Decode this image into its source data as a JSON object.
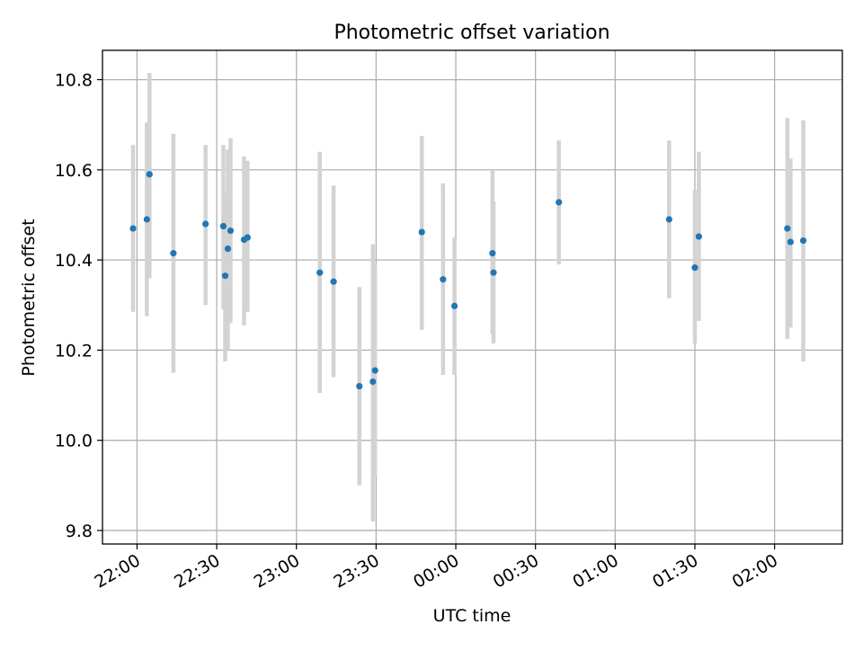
{
  "chart_data": {
    "type": "scatter",
    "title": "Photometric offset variation",
    "xlabel": "UTC time",
    "ylabel": "Photometric offset",
    "x_tick_labels": [
      "22:00",
      "22:30",
      "23:00",
      "23:30",
      "00:00",
      "00:30",
      "01:00",
      "01:30",
      "02:00"
    ],
    "x_tick_minutes": [
      0,
      30,
      60,
      90,
      120,
      150,
      180,
      210,
      240
    ],
    "y_tick_labels": [
      "9.8",
      "10.0",
      "10.2",
      "10.4",
      "10.6",
      "10.8"
    ],
    "y_ticks": [
      9.8,
      10.0,
      10.2,
      10.4,
      10.6,
      10.8
    ],
    "xlim_minutes": [
      -13.0,
      265.5
    ],
    "ylim": [
      9.77,
      10.865
    ],
    "grid": true,
    "colors": {
      "marker": "#1f77b4",
      "errorbar": "#d3d3d3",
      "grid": "#b0b0b0"
    },
    "points": [
      {
        "t": "21:58",
        "minutes": -1.5,
        "y": 10.47,
        "lo": 10.285,
        "hi": 10.655
      },
      {
        "t": "22:04",
        "minutes": 3.7,
        "y": 10.49,
        "lo": 10.275,
        "hi": 10.705
      },
      {
        "t": "22:04",
        "minutes": 4.7,
        "y": 10.59,
        "lo": 10.36,
        "hi": 10.815
      },
      {
        "t": "22:14",
        "minutes": 13.7,
        "y": 10.415,
        "lo": 10.15,
        "hi": 10.68
      },
      {
        "t": "22:26",
        "minutes": 25.8,
        "y": 10.48,
        "lo": 10.3,
        "hi": 10.655
      },
      {
        "t": "22:32",
        "minutes": 32.5,
        "y": 10.475,
        "lo": 10.29,
        "hi": 10.655
      },
      {
        "t": "22:33",
        "minutes": 33.2,
        "y": 10.365,
        "lo": 10.175,
        "hi": 10.55
      },
      {
        "t": "22:34",
        "minutes": 34.2,
        "y": 10.425,
        "lo": 10.2,
        "hi": 10.645
      },
      {
        "t": "22:35",
        "minutes": 35.2,
        "y": 10.465,
        "lo": 10.26,
        "hi": 10.67
      },
      {
        "t": "22:40",
        "minutes": 40.3,
        "y": 10.445,
        "lo": 10.255,
        "hi": 10.63
      },
      {
        "t": "22:41",
        "minutes": 41.6,
        "y": 10.45,
        "lo": 10.285,
        "hi": 10.62
      },
      {
        "t": "23:09",
        "minutes": 68.8,
        "y": 10.372,
        "lo": 10.105,
        "hi": 10.64
      },
      {
        "t": "23:14",
        "minutes": 74.0,
        "y": 10.352,
        "lo": 10.14,
        "hi": 10.565
      },
      {
        "t": "23:24",
        "minutes": 83.7,
        "y": 10.12,
        "lo": 9.9,
        "hi": 10.34
      },
      {
        "t": "23:29",
        "minutes": 88.8,
        "y": 10.13,
        "lo": 9.82,
        "hi": 10.435
      },
      {
        "t": "23:30",
        "minutes": 89.6,
        "y": 10.155,
        "lo": 9.92,
        "hi": 10.39
      },
      {
        "t": "23:47",
        "minutes": 107.2,
        "y": 10.462,
        "lo": 10.245,
        "hi": 10.675
      },
      {
        "t": "23:55",
        "minutes": 115.2,
        "y": 10.357,
        "lo": 10.145,
        "hi": 10.57
      },
      {
        "t": "23:59",
        "minutes": 119.5,
        "y": 10.298,
        "lo": 10.145,
        "hi": 10.45
      },
      {
        "t": "00:13",
        "minutes": 133.8,
        "y": 10.415,
        "lo": 10.235,
        "hi": 10.6
      },
      {
        "t": "00:14",
        "minutes": 134.2,
        "y": 10.372,
        "lo": 10.215,
        "hi": 10.53
      },
      {
        "t": "00:38",
        "minutes": 158.8,
        "y": 10.528,
        "lo": 10.39,
        "hi": 10.665
      },
      {
        "t": "01:20",
        "minutes": 200.3,
        "y": 10.49,
        "lo": 10.315,
        "hi": 10.665
      },
      {
        "t": "01:30",
        "minutes": 210.0,
        "y": 10.383,
        "lo": 10.215,
        "hi": 10.555
      },
      {
        "t": "01:31",
        "minutes": 211.5,
        "y": 10.452,
        "lo": 10.265,
        "hi": 10.64
      },
      {
        "t": "02:05",
        "minutes": 244.8,
        "y": 10.47,
        "lo": 10.225,
        "hi": 10.715
      },
      {
        "t": "02:06",
        "minutes": 246.0,
        "y": 10.44,
        "lo": 10.25,
        "hi": 10.625
      },
      {
        "t": "02:11",
        "minutes": 250.8,
        "y": 10.443,
        "lo": 10.175,
        "hi": 10.71
      }
    ]
  }
}
